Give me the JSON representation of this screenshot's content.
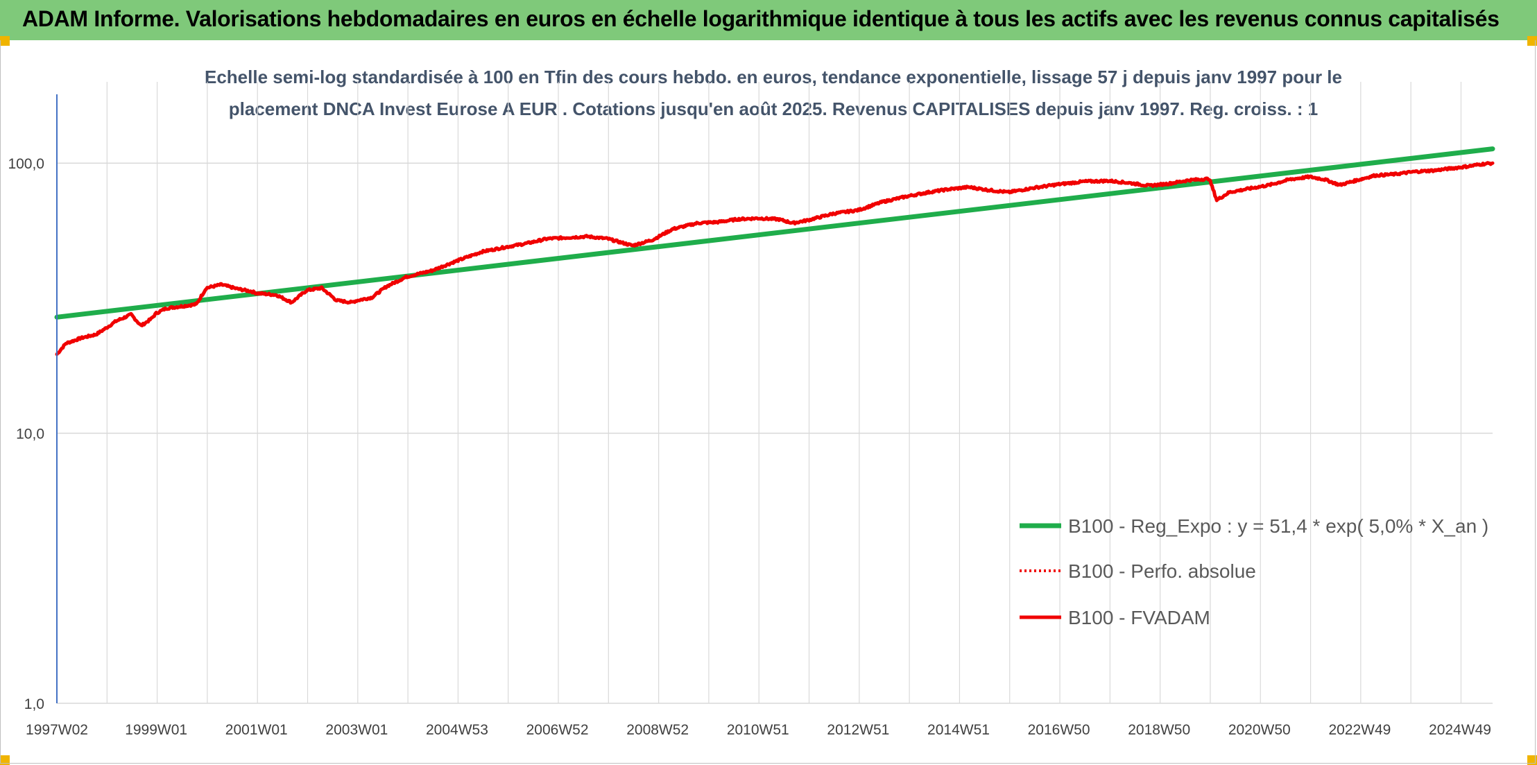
{
  "banner": {
    "title": "ADAM Informe. Valorisations hebdomadaires en euros en échelle logarithmique identique à tous les actifs avec les revenus connus capitalisés"
  },
  "colors": {
    "banner_bg": "#7fc97a",
    "trend": "#1fad4b",
    "fvadam": "#f00000",
    "perfo": "#f00000",
    "grid": "#d9d9d9",
    "title_text": "#44546a"
  },
  "chart_data": {
    "type": "line",
    "title": "Echelle semi-log standardisée à 100 en Tfin des cours hebdo. en euros, tendance exponentielle, lissage 57 j depuis janv 1997 pour le placement DNCA Invest Eurose A EUR . Cotations jusqu'en août 2025. Revenus CAPITALISES depuis janv 1997. Reg. croiss. : 1",
    "title_lines": [
      "Echelle semi-log standardisée à 100 en Tfin des cours hebdo. en euros, tendance exponentielle, lissage 57 j depuis janv 1997 pour le",
      "placement DNCA Invest Eurose A EUR . Cotations jusqu'en août 2025. Revenus CAPITALISES depuis janv 1997. Reg. croiss. : 1"
    ],
    "y_scale": "log",
    "ylim": [
      1,
      200
    ],
    "y_ticks": [
      1,
      10,
      100
    ],
    "y_tick_labels": [
      "1,0",
      "10,0",
      "100,0"
    ],
    "xlim": [
      1997.02,
      2025.65
    ],
    "x_tick_labels": [
      "1997W02",
      "1999W01",
      "2001W01",
      "2003W01",
      "2004W53",
      "2006W52",
      "2008W52",
      "2010W51",
      "2012W51",
      "2014W51",
      "2016W50",
      "2018W50",
      "2020W50",
      "2022W49",
      "2024W49"
    ],
    "x_tick_positions": [
      1997.02,
      1999.0,
      2001.0,
      2003.0,
      2005.0,
      2007.0,
      2009.0,
      2011.0,
      2013.0,
      2015.0,
      2017.0,
      2019.0,
      2021.0,
      2023.0,
      2025.0
    ],
    "grid": true,
    "legend_position": "bottom-right",
    "series": [
      {
        "name": "B100 - Reg_Expo : y = 51,4 * exp( 5,0% *  X_an )",
        "style": "solid-thick",
        "color": "#1fad4b",
        "x": [
          1997.02,
          2025.65
        ],
        "y": [
          26.9,
          113.0
        ]
      },
      {
        "name": "B100 - Perfo. absolue",
        "style": "dotted",
        "color": "#f00000",
        "x": [],
        "y": []
      },
      {
        "name": "B100 - FVADAM",
        "style": "solid",
        "color": "#f00000",
        "x": [
          1997.02,
          1997.2,
          1997.5,
          1997.8,
          1998.0,
          1998.2,
          1998.5,
          1998.7,
          1998.9,
          1999.0,
          1999.2,
          1999.5,
          1999.8,
          2000.0,
          2000.3,
          2000.6,
          2000.9,
          2001.0,
          2001.4,
          2001.7,
          2002.0,
          2002.3,
          2002.6,
          2002.9,
          2003.0,
          2003.3,
          2003.6,
          2004.0,
          2004.5,
          2005.0,
          2005.5,
          2006.0,
          2006.4,
          2006.8,
          2007.2,
          2007.6,
          2008.0,
          2008.5,
          2008.9,
          2009.3,
          2009.8,
          2010.2,
          2010.6,
          2011.0,
          2011.4,
          2011.7,
          2012.0,
          2012.5,
          2013.0,
          2013.5,
          2014.0,
          2014.4,
          2014.8,
          2015.2,
          2015.6,
          2016.0,
          2016.5,
          2017.0,
          2017.5,
          2018.0,
          2018.4,
          2018.8,
          2019.2,
          2019.6,
          2020.0,
          2020.15,
          2020.4,
          2020.8,
          2021.2,
          2021.6,
          2022.0,
          2022.3,
          2022.6,
          2022.9,
          2023.3,
          2023.7,
          2024.1,
          2024.5,
          2024.9,
          2025.2,
          2025.4,
          2025.65
        ],
        "y": [
          19.6,
          21.5,
          22.5,
          23.2,
          24.5,
          26.0,
          27.5,
          25.0,
          26.5,
          27.8,
          29.0,
          29.5,
          30.0,
          34.5,
          35.5,
          34.3,
          33.5,
          33.0,
          32.5,
          30.5,
          33.8,
          34.5,
          31.0,
          30.5,
          31.0,
          31.8,
          35.0,
          38.0,
          40.0,
          43.5,
          47.0,
          49.0,
          50.5,
          52.5,
          53.0,
          53.5,
          52.5,
          49.5,
          52.0,
          57.0,
          60.0,
          60.5,
          62.0,
          62.5,
          62.0,
          60.0,
          61.5,
          65.0,
          67.0,
          72.0,
          75.5,
          78.0,
          80.0,
          81.5,
          79.5,
          78.0,
          81.0,
          83.5,
          85.5,
          86.0,
          84.5,
          82.5,
          84.0,
          86.5,
          87.5,
          73.0,
          78.0,
          80.5,
          83.0,
          87.0,
          89.0,
          87.0,
          83.0,
          86.0,
          90.0,
          91.0,
          93.0,
          94.0,
          96.0,
          97.5,
          99.0,
          100.0
        ]
      }
    ]
  }
}
